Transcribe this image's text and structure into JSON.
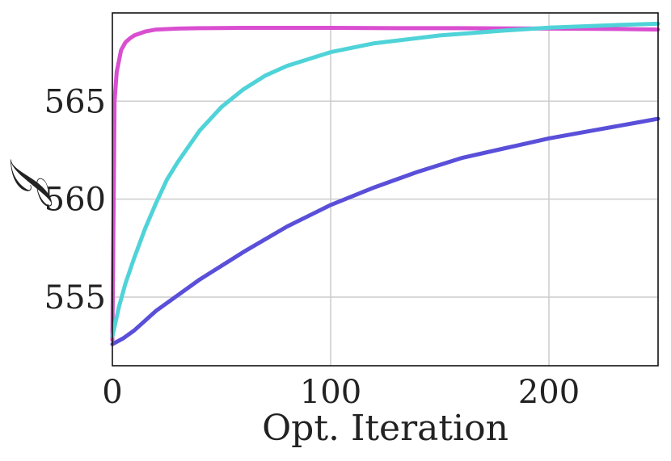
{
  "chart_data": {
    "type": "line",
    "title": "",
    "xlabel": "Opt. Iteration",
    "ylabel": "𝒥",
    "xlim": [
      0,
      250
    ],
    "ylim": [
      551.5,
      569.5
    ],
    "xticks": [
      0,
      100,
      200
    ],
    "yticks": [
      555,
      560,
      565
    ],
    "xtick_labels": [
      "0",
      "100",
      "200"
    ],
    "ytick_labels": [
      "555",
      "560",
      "565"
    ],
    "grid": true,
    "legend": "none",
    "series": [
      {
        "color": "#d94fd0",
        "x": [
          0,
          1,
          2,
          4,
          6,
          8,
          10,
          15,
          20,
          30,
          40,
          60,
          80,
          100,
          130,
          160,
          200,
          230,
          250
        ],
        "y": [
          552.8,
          565.0,
          566.5,
          567.6,
          568.0,
          568.2,
          568.35,
          568.55,
          568.65,
          568.7,
          568.72,
          568.74,
          568.74,
          568.74,
          568.72,
          568.72,
          568.7,
          568.68,
          568.65
        ]
      },
      {
        "color": "#4fd3d8",
        "x": [
          0,
          3,
          6,
          10,
          15,
          20,
          25,
          30,
          40,
          50,
          60,
          70,
          80,
          100,
          120,
          150,
          180,
          200,
          230,
          250
        ],
        "y": [
          553.0,
          554.5,
          555.7,
          557.0,
          558.5,
          559.8,
          561.0,
          561.9,
          563.5,
          564.7,
          565.6,
          566.3,
          566.8,
          567.5,
          567.95,
          568.35,
          568.6,
          568.75,
          568.88,
          568.95
        ]
      },
      {
        "color": "#5a4fd9",
        "x": [
          0,
          5,
          10,
          20,
          30,
          40,
          50,
          60,
          80,
          100,
          120,
          140,
          160,
          180,
          200,
          220,
          240,
          250
        ],
        "y": [
          552.6,
          552.9,
          553.3,
          554.3,
          555.1,
          555.9,
          556.6,
          557.3,
          558.6,
          559.7,
          560.6,
          561.4,
          562.1,
          562.6,
          563.1,
          563.5,
          563.9,
          564.1
        ]
      }
    ]
  }
}
